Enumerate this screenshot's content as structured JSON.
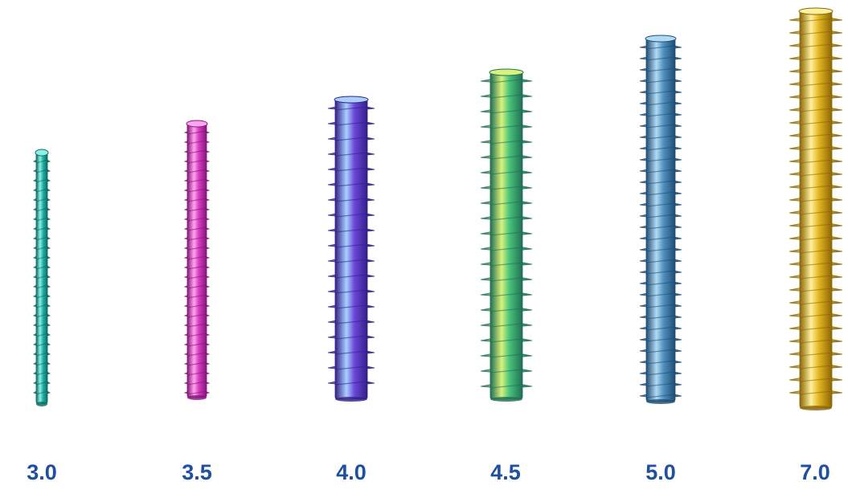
{
  "accent_color": "#1e4fa0",
  "screws": [
    {
      "label": "3.0",
      "color": "#22b3a6",
      "light": "#8df0e6",
      "dark": "#0f6b62"
    },
    {
      "label": "3.5",
      "color": "#d63cc0",
      "light": "#ffa6f0",
      "dark": "#84157a"
    },
    {
      "label": "4.0",
      "color": "#6a46d8",
      "light": "#a9d0ff",
      "dark": "#341f86"
    },
    {
      "label": "4.5",
      "color": "#46c27a",
      "light": "#d9f27a",
      "dark": "#1f6e55"
    },
    {
      "label": "5.0",
      "color": "#4f8fbe",
      "light": "#b3daf3",
      "dark": "#1f4d72"
    },
    {
      "label": "7.0",
      "color": "#e2b51e",
      "light": "#fff1a0",
      "dark": "#8a6606"
    }
  ]
}
